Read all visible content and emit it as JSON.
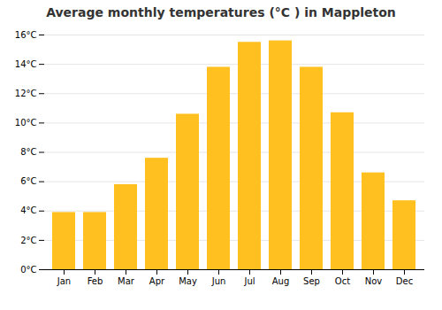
{
  "chart_data": {
    "type": "bar",
    "title": "Average monthly temperatures (°C ) in Mappleton",
    "categories": [
      "Jan",
      "Feb",
      "Mar",
      "Apr",
      "May",
      "Jun",
      "Jul",
      "Aug",
      "Sep",
      "Oct",
      "Nov",
      "Dec"
    ],
    "values": [
      3.9,
      3.9,
      5.8,
      7.6,
      10.6,
      13.8,
      15.5,
      15.6,
      13.8,
      10.7,
      6.6,
      4.7
    ],
    "color": "#FFC020",
    "ylim": [
      0,
      16
    ],
    "yticks": [
      {
        "value": 0,
        "label": "0°C"
      },
      {
        "value": 2,
        "label": "2°C"
      },
      {
        "value": 4,
        "label": "4°C"
      },
      {
        "value": 6,
        "label": "6°C"
      },
      {
        "value": 8,
        "label": "8°C"
      },
      {
        "value": 10,
        "label": "10°C"
      },
      {
        "value": 12,
        "label": "12°C"
      },
      {
        "value": 14,
        "label": "14°C"
      },
      {
        "value": 16,
        "label": "16°C"
      }
    ],
    "grid": true
  }
}
